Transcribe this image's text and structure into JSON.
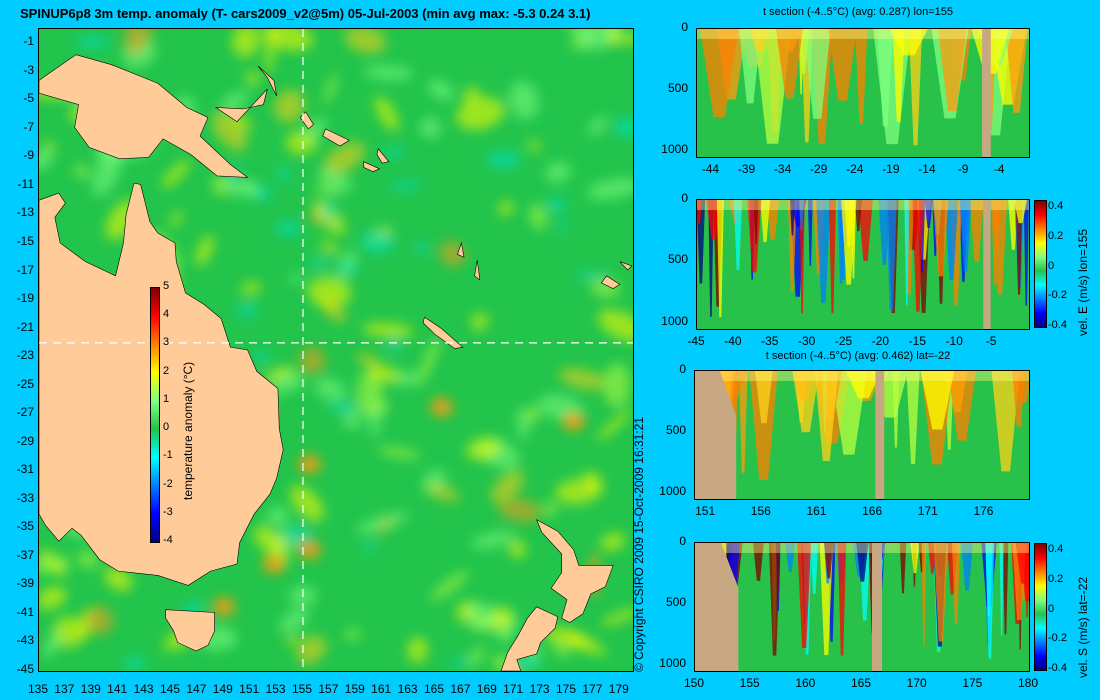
{
  "main_title": "SPINUP6p8 3m temp. anomaly (T- cars2009_v2@5m) 05-Jul-2003 (min avg max: -5.3 0.24 3.1)",
  "copyright": "© Copyright CSIRO 2009   15-Oct-2009 16:31:21",
  "colors": {
    "background": "#00ccff",
    "land": "#ffcc99",
    "section_land": "#c8a882",
    "colormap": [
      "#00007f",
      "#0000ff",
      "#007fff",
      "#00ffff",
      "#22c44c",
      "#7fff7f",
      "#ffff00",
      "#ff7f00",
      "#ff0000",
      "#7f0000"
    ]
  },
  "chart_data": [
    {
      "type": "heatmap",
      "name": "map",
      "title": "SPINUP6p8 3m temp. anomaly (T- cars2009_v2@5m) 05-Jul-2003 (min avg max: -5.3 0.24 3.1)",
      "xlim": [
        135,
        180
      ],
      "ylim": [
        -45,
        0
      ],
      "x_ticks": [
        "135",
        "137",
        "139",
        "141",
        "143",
        "145",
        "147",
        "149",
        "151",
        "153",
        "155",
        "157",
        "159",
        "161",
        "163",
        "165",
        "167",
        "169",
        "171",
        "173",
        "175",
        "177",
        "179"
      ],
      "y_ticks": [
        "-1",
        "-3",
        "-5",
        "-7",
        "-9",
        "-11",
        "-13",
        "-15",
        "-17",
        "-19",
        "-21",
        "-23",
        "-25",
        "-27",
        "-29",
        "-31",
        "-33",
        "-35",
        "-37",
        "-39",
        "-41",
        "-43",
        "-45"
      ],
      "section_lines": {
        "lon": 155,
        "lat": -22
      },
      "colorbar": {
        "label": "temperature anomaly (°C)",
        "ticks": [
          "5",
          "4",
          "3",
          "2",
          "1",
          "0",
          "-1",
          "-2",
          "-3",
          "-4"
        ],
        "range": [
          -4,
          5
        ]
      },
      "stats": {
        "min": -5.3,
        "avg": 0.24,
        "max": 3.1
      }
    },
    {
      "type": "heatmap",
      "name": "t-section-lon155",
      "title": "t section (-4..5°C) (avg: 0.287) lon=155",
      "x_ticks": [
        "-44",
        "-39",
        "-34",
        "-29",
        "-24",
        "-19",
        "-14",
        "-9",
        "-4"
      ],
      "xlim": [
        -46,
        0
      ],
      "y_ticks": [
        "0",
        "500",
        "1000"
      ],
      "ylim": [
        1050,
        0
      ]
    },
    {
      "type": "heatmap",
      "name": "vel-e-section-lon155",
      "title": "",
      "x_ticks": [
        "-45",
        "-40",
        "-35",
        "-30",
        "-25",
        "-20",
        "-15",
        "-10",
        "-5"
      ],
      "xlim": [
        -45,
        0
      ],
      "y_ticks": [
        "0",
        "500",
        "1000"
      ],
      "ylim": [
        1050,
        0
      ],
      "colorbar": {
        "label": "vel. E (m/s) lon=155",
        "ticks": [
          "0.4",
          "0.2",
          "0",
          "-0.2",
          "-0.4"
        ],
        "range": [
          -0.4,
          0.45
        ]
      }
    },
    {
      "type": "heatmap",
      "name": "t-section-lat-22",
      "title": "t section (-4..5°C) (avg: 0.462) lat=-22",
      "x_ticks": [
        "151",
        "156",
        "161",
        "166",
        "171",
        "176"
      ],
      "xlim": [
        150,
        180
      ],
      "y_ticks": [
        "0",
        "500",
        "1000"
      ],
      "ylim": [
        1050,
        0
      ]
    },
    {
      "type": "heatmap",
      "name": "vel-s-section-lat-22",
      "title": "",
      "x_ticks": [
        "150",
        "155",
        "160",
        "165",
        "170",
        "175",
        "180"
      ],
      "xlim": [
        150,
        180
      ],
      "y_ticks": [
        "0",
        "500",
        "1000"
      ],
      "ylim": [
        1050,
        0
      ],
      "colorbar": {
        "label": "vel. S (m/s) lat=-22",
        "ticks": [
          "0.4",
          "0.2",
          "0",
          "-0.2",
          "-0.4"
        ],
        "range": [
          -0.4,
          0.45
        ]
      }
    }
  ]
}
